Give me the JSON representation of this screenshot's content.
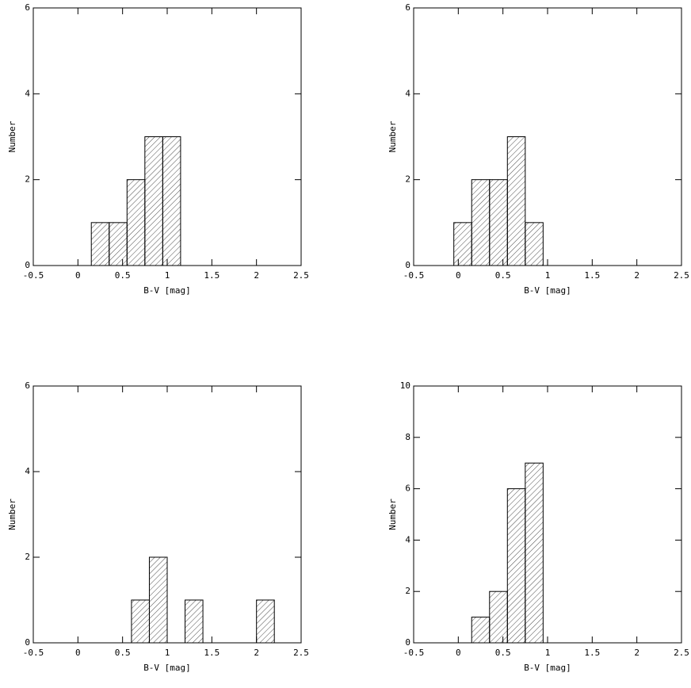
{
  "chart_data": [
    {
      "type": "histogram",
      "xlabel": "B-V [mag]",
      "ylabel": "Number",
      "bins": [
        0.15,
        0.35,
        0.55,
        0.75,
        0.95,
        1.15
      ],
      "values": [
        1,
        1,
        2,
        3,
        3
      ],
      "xlim": [
        -0.5,
        2.5
      ],
      "xticks": [
        -0.5,
        0,
        0.5,
        1,
        1.5,
        2,
        2.5
      ],
      "ylim": [
        0,
        6
      ],
      "yticks": [
        0,
        2,
        4,
        6
      ]
    },
    {
      "type": "histogram",
      "xlabel": "B-V [mag]",
      "ylabel": "Number",
      "bins": [
        -0.05,
        0.15,
        0.35,
        0.55,
        0.75,
        0.95
      ],
      "values": [
        1,
        2,
        2,
        3,
        1
      ],
      "xlim": [
        -0.5,
        2.5
      ],
      "xticks": [
        -0.5,
        0,
        0.5,
        1,
        1.5,
        2,
        2.5
      ],
      "ylim": [
        0,
        6
      ],
      "yticks": [
        0,
        2,
        4,
        6
      ]
    },
    {
      "type": "histogram",
      "xlabel": "B-V [mag]",
      "ylabel": "Number",
      "bins": [
        0.6,
        0.8,
        1.0,
        1.2,
        1.4,
        1.6,
        1.8,
        2.0,
        2.2
      ],
      "values": [
        1,
        2,
        0,
        1,
        0,
        0,
        0,
        1
      ],
      "xlim": [
        -0.5,
        2.5
      ],
      "xticks": [
        -0.5,
        0,
        0.5,
        1,
        1.5,
        2,
        2.5
      ],
      "ylim": [
        0,
        6
      ],
      "yticks": [
        0,
        2,
        4,
        6
      ]
    },
    {
      "type": "histogram",
      "xlabel": "B-V [mag]",
      "ylabel": "Number",
      "bins": [
        0.15,
        0.35,
        0.55,
        0.75,
        0.95
      ],
      "values": [
        1,
        2,
        6,
        7
      ],
      "xlim": [
        -0.5,
        2.5
      ],
      "xticks": [
        -0.5,
        0,
        0.5,
        1,
        1.5,
        2,
        2.5
      ],
      "ylim": [
        0,
        10
      ],
      "yticks": [
        0,
        2,
        4,
        6,
        8,
        10
      ]
    }
  ]
}
